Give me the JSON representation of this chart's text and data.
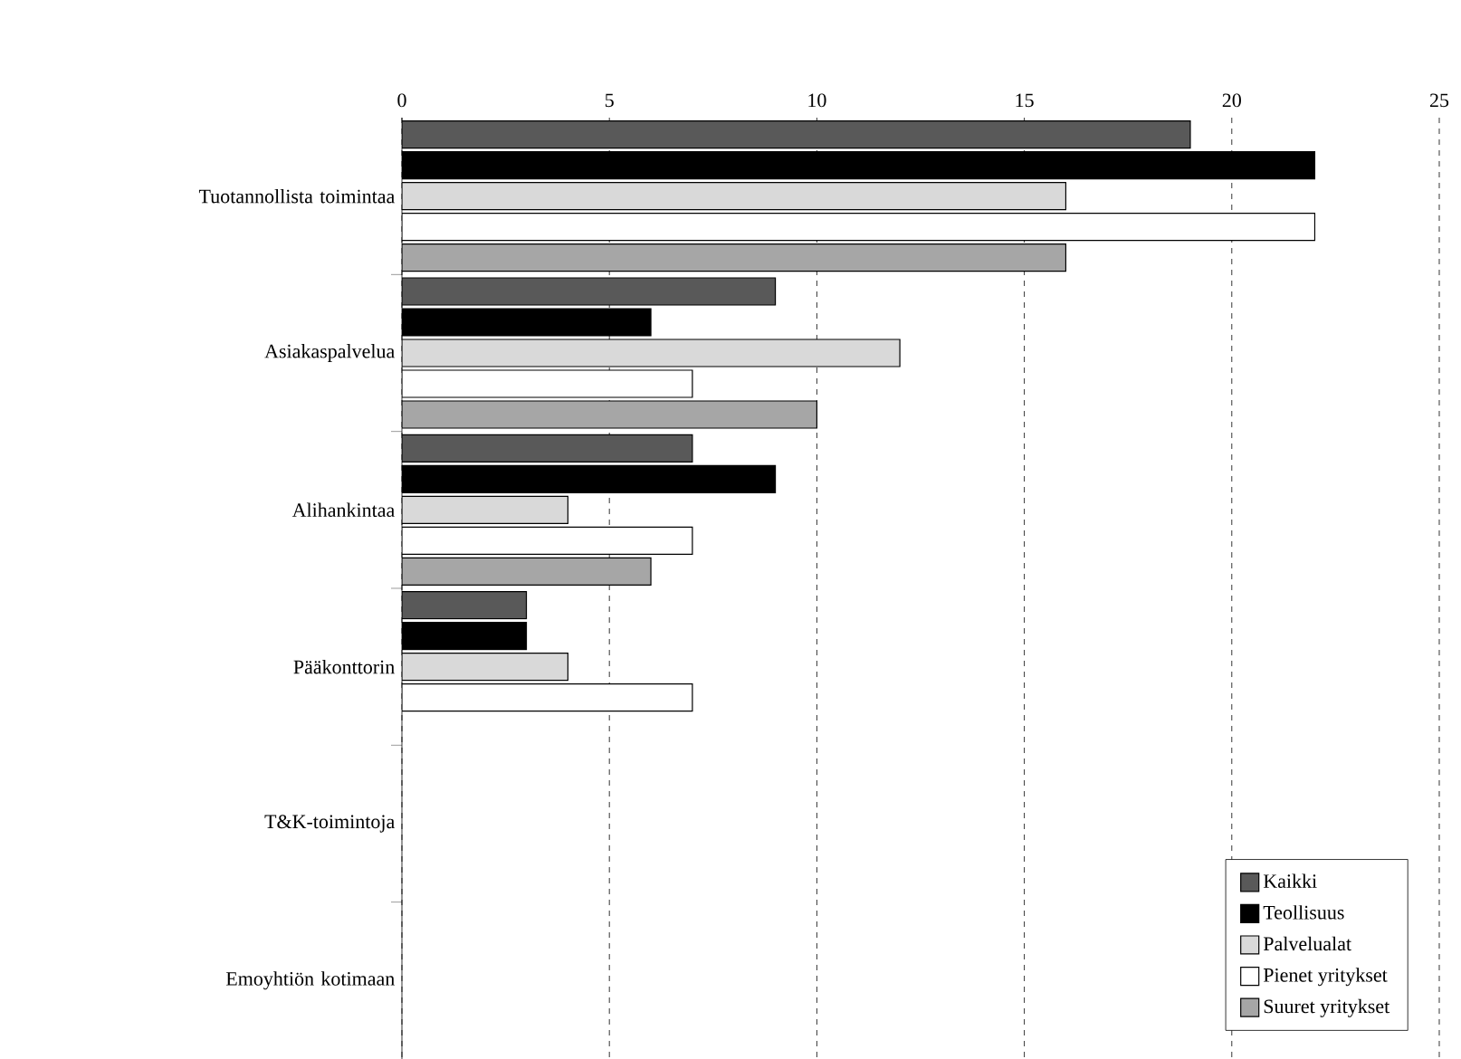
{
  "chart_data": {
    "type": "bar",
    "orientation": "horizontal",
    "categories": [
      "Tuotannollista toimintaa",
      "Asiakaspalvelua",
      "Alihankintaa",
      "Pääkonttorin",
      "T&K-toimintoja",
      "Emoyhtiön kotimaan"
    ],
    "series": [
      {
        "name": "Kaikki",
        "color": "#595959",
        "values": [
          19,
          9,
          7,
          3,
          null,
          null
        ]
      },
      {
        "name": "Teollisuus",
        "color": "#000000",
        "values": [
          22,
          6,
          9,
          3,
          null,
          null
        ]
      },
      {
        "name": "Palvelualat",
        "color": "#d9d9d9",
        "values": [
          16,
          12,
          4,
          4,
          null,
          null
        ]
      },
      {
        "name": "Pienet yritykset",
        "color": "#ffffff",
        "values": [
          22,
          7,
          7,
          7,
          null,
          null
        ]
      },
      {
        "name": "Suuret yritykset",
        "color": "#a6a6a6",
        "values": [
          16,
          10,
          6,
          null,
          null,
          null
        ]
      }
    ],
    "xlim": [
      0,
      25
    ],
    "xticks": [
      0,
      5,
      10,
      15,
      20,
      25
    ],
    "grid": "x",
    "legend": "bottom right"
  }
}
